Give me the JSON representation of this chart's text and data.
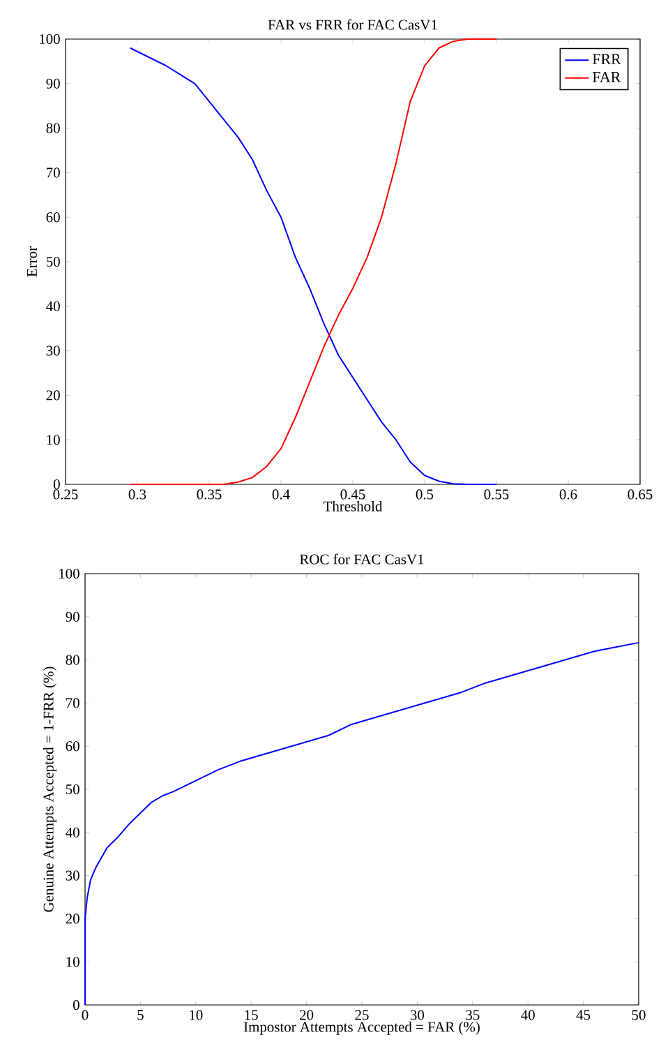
{
  "chart_data": [
    {
      "type": "line",
      "title": "FAR vs FRR for FAC CasV1",
      "xlabel": "Threshold",
      "ylabel": "Error",
      "xlim": [
        0.25,
        0.65
      ],
      "ylim": [
        0,
        100
      ],
      "xticks": [
        0.25,
        0.3,
        0.35,
        0.4,
        0.45,
        0.5,
        0.55,
        0.6,
        0.65
      ],
      "yticks": [
        0,
        10,
        20,
        30,
        40,
        50,
        60,
        70,
        80,
        90,
        100
      ],
      "grid": false,
      "legend": "top right",
      "series": [
        {
          "name": "FRR",
          "color": "#0000ff",
          "x": [
            0.295,
            0.32,
            0.34,
            0.35,
            0.37,
            0.38,
            0.39,
            0.4,
            0.41,
            0.42,
            0.43,
            0.44,
            0.45,
            0.46,
            0.47,
            0.48,
            0.49,
            0.5,
            0.51,
            0.52,
            0.53,
            0.55
          ],
          "values": [
            98,
            94,
            90,
            86,
            78,
            73,
            66,
            60,
            51,
            44,
            36,
            29,
            24,
            19,
            14,
            10,
            5,
            2,
            0.7,
            0.1,
            0,
            0
          ]
        },
        {
          "name": "FAR",
          "color": "#ff0000",
          "x": [
            0.295,
            0.36,
            0.37,
            0.38,
            0.39,
            0.4,
            0.41,
            0.42,
            0.43,
            0.44,
            0.45,
            0.46,
            0.47,
            0.48,
            0.49,
            0.5,
            0.51,
            0.52,
            0.53,
            0.55
          ],
          "values": [
            0,
            0,
            0.5,
            1.5,
            4,
            8,
            15,
            23,
            31,
            38,
            44,
            51,
            60,
            72,
            86,
            94,
            98,
            99.5,
            100,
            100
          ]
        }
      ]
    },
    {
      "type": "line",
      "title": "ROC for FAC CasV1",
      "xlabel": "Impostor Attempts Accepted = FAR (%)",
      "ylabel": "Genuine Attempts Accepted = 1-FRR (%)",
      "xlim": [
        0,
        50
      ],
      "ylim": [
        0,
        100
      ],
      "xticks": [
        0,
        5,
        10,
        15,
        20,
        25,
        30,
        35,
        40,
        45,
        50
      ],
      "yticks": [
        0,
        10,
        20,
        30,
        40,
        50,
        60,
        70,
        80,
        90,
        100
      ],
      "grid": false,
      "legend": false,
      "series": [
        {
          "color": "#0000ff",
          "x": [
            0,
            0,
            0.2,
            0.5,
            1,
            2,
            3,
            4,
            5,
            6,
            7,
            8,
            10,
            12,
            14,
            16,
            18,
            20,
            22,
            24,
            26,
            28,
            30,
            32,
            34,
            36,
            38,
            40,
            42,
            44,
            46,
            48,
            50
          ],
          "values": [
            0,
            20,
            25,
            29,
            32,
            36.5,
            39,
            42,
            44.5,
            47,
            48.5,
            49.5,
            52,
            54.5,
            56.5,
            58,
            59.5,
            61,
            62.5,
            65,
            66.5,
            68,
            69.5,
            71,
            72.5,
            74.5,
            76,
            77.5,
            79,
            80.5,
            82,
            83,
            84
          ]
        }
      ]
    }
  ]
}
